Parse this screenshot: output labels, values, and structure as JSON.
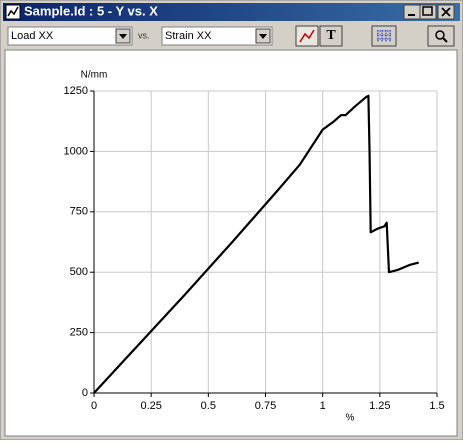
{
  "window": {
    "title": "Sample.Id : 5 - Y vs. X"
  },
  "toolbar": {
    "y_select": "Load XX",
    "vs": "vs.",
    "x_select": "Strain XX",
    "text_button": "T"
  },
  "chart_data": {
    "type": "line",
    "y_label": "N/mm",
    "x_label": "%",
    "x": [
      0,
      0.2,
      0.4,
      0.6,
      0.8,
      0.9,
      1.0,
      1.05,
      1.08,
      1.1,
      1.14,
      1.19,
      1.2,
      1.205,
      1.21,
      1.24,
      1.27,
      1.28,
      1.29,
      1.33,
      1.38,
      1.42
    ],
    "values": [
      0,
      205,
      410,
      620,
      835,
      945,
      1090,
      1125,
      1150,
      1150,
      1185,
      1225,
      1230,
      1000,
      665,
      680,
      690,
      705,
      500,
      510,
      530,
      540
    ],
    "color": "#000000",
    "xlim": [
      0,
      1.5
    ],
    "ylim": [
      0,
      1250
    ],
    "xticks": [
      0,
      0.25,
      0.5,
      0.75,
      1,
      1.25,
      1.5
    ],
    "yticks": [
      0,
      250,
      500,
      750,
      1000,
      1250
    ],
    "grid": true
  }
}
